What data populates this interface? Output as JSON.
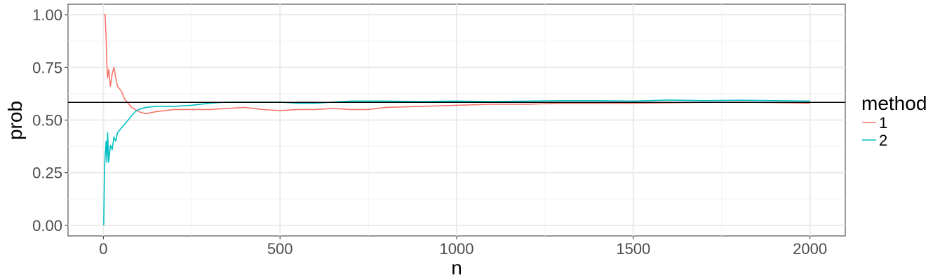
{
  "chart_data": {
    "type": "line",
    "title": "",
    "xlabel": "n",
    "ylabel": "prob",
    "xlim": [
      -100,
      2100
    ],
    "ylim": [
      -0.05,
      1.05
    ],
    "x_ticks": [
      0,
      500,
      1000,
      1500,
      2000
    ],
    "x_tick_labels": [
      "0",
      "500",
      "1000",
      "1500",
      "2000"
    ],
    "y_ticks": [
      0,
      0.25,
      0.5,
      0.75,
      1
    ],
    "y_tick_labels": [
      "0.00",
      "0.25",
      "0.50",
      "0.75",
      "1.00"
    ],
    "grid": true,
    "legend": {
      "title": "method",
      "position": "right"
    },
    "reference_line": {
      "y": 0.584,
      "color": "#000000"
    },
    "series": [
      {
        "name": "1",
        "color": "#F8766D",
        "x": [
          1,
          5,
          8,
          10,
          12,
          15,
          20,
          25,
          30,
          35,
          40,
          50,
          60,
          70,
          80,
          90,
          100,
          120,
          150,
          200,
          250,
          300,
          350,
          400,
          450,
          500,
          550,
          600,
          650,
          700,
          750,
          800,
          900,
          1000,
          1100,
          1200,
          1300,
          1400,
          1500,
          1600,
          1700,
          1800,
          1900,
          2000
        ],
        "y": [
          1.0,
          1.0,
          0.88,
          0.76,
          0.7,
          0.74,
          0.66,
          0.72,
          0.75,
          0.7,
          0.66,
          0.64,
          0.6,
          0.58,
          0.56,
          0.55,
          0.54,
          0.53,
          0.54,
          0.55,
          0.55,
          0.55,
          0.555,
          0.56,
          0.55,
          0.545,
          0.55,
          0.55,
          0.555,
          0.55,
          0.55,
          0.56,
          0.565,
          0.57,
          0.575,
          0.575,
          0.58,
          0.58,
          0.58,
          0.582,
          0.584,
          0.585,
          0.583,
          0.58
        ]
      },
      {
        "name": "2",
        "color": "#00BFC4",
        "x": [
          1,
          3,
          5,
          8,
          10,
          12,
          15,
          20,
          25,
          30,
          35,
          40,
          50,
          60,
          70,
          80,
          90,
          100,
          120,
          150,
          200,
          250,
          300,
          350,
          400,
          450,
          500,
          550,
          600,
          650,
          700,
          750,
          800,
          900,
          1000,
          1100,
          1200,
          1300,
          1400,
          1500,
          1600,
          1700,
          1800,
          1900,
          2000
        ],
        "y": [
          0.0,
          0.25,
          0.33,
          0.4,
          0.3,
          0.44,
          0.3,
          0.38,
          0.36,
          0.42,
          0.4,
          0.44,
          0.46,
          0.48,
          0.5,
          0.52,
          0.54,
          0.55,
          0.56,
          0.565,
          0.565,
          0.57,
          0.58,
          0.585,
          0.585,
          0.585,
          0.585,
          0.58,
          0.58,
          0.585,
          0.59,
          0.59,
          0.59,
          0.588,
          0.59,
          0.588,
          0.59,
          0.592,
          0.592,
          0.59,
          0.595,
          0.592,
          0.594,
          0.592,
          0.59
        ]
      }
    ]
  }
}
